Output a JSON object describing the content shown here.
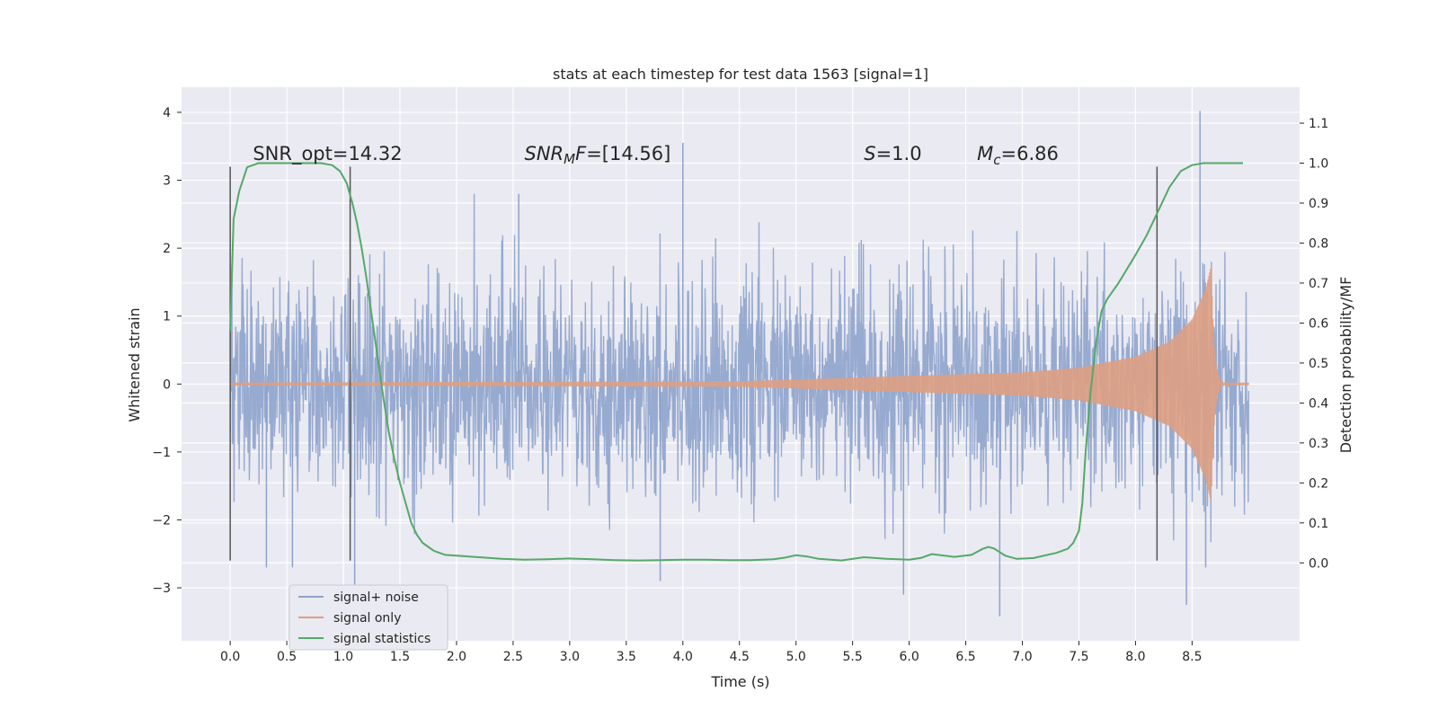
{
  "chart_data": {
    "type": "line",
    "title": "stats at each timestep for test data 1563 [signal=1]",
    "xlabel": "Time (s)",
    "ylabel_left": "Whitened strain",
    "ylabel_right": "Detection probability/MF",
    "xlim": [
      -0.43,
      9.45
    ],
    "ylim_left": [
      -3.78,
      4.37
    ],
    "ylim_right": [
      -0.195,
      1.19
    ],
    "x_ticks": [
      "0.0",
      "0.5",
      "1.0",
      "1.5",
      "2.0",
      "2.5",
      "3.0",
      "3.5",
      "4.0",
      "4.5",
      "5.0",
      "5.5",
      "6.0",
      "6.5",
      "7.0",
      "7.5",
      "8.0",
      "8.5"
    ],
    "x_tick_values": [
      0.0,
      0.5,
      1.0,
      1.5,
      2.0,
      2.5,
      3.0,
      3.5,
      4.0,
      4.5,
      5.0,
      5.5,
      6.0,
      6.5,
      7.0,
      7.5,
      8.0,
      8.5
    ],
    "y_left_ticks": [
      "4",
      "3",
      "2",
      "1",
      "0",
      "−1",
      "−2",
      "−3"
    ],
    "y_left_tick_values": [
      4,
      3,
      2,
      1,
      0,
      -1,
      -2,
      -3
    ],
    "y_right_ticks": [
      "1.1",
      "1.0",
      "0.9",
      "0.8",
      "0.7",
      "0.6",
      "0.5",
      "0.4",
      "0.3",
      "0.2",
      "0.1",
      "0.0"
    ],
    "y_right_tick_values": [
      1.1,
      1.0,
      0.9,
      0.8,
      0.7,
      0.6,
      0.5,
      0.4,
      0.3,
      0.2,
      0.1,
      0.0
    ],
    "grid": true,
    "legend_position": "lower-left",
    "series": [
      {
        "name": "signal+ noise",
        "axis": "left",
        "color": "#8ea3cc",
        "kind": "noise",
        "x_range": [
          0.0,
          9.0
        ],
        "typical_envelope": [
          -1.55,
          1.55
        ],
        "notable_peaks": [
          {
            "x": 4.0,
            "y": 3.55
          },
          {
            "x": 8.57,
            "y": 4.02
          },
          {
            "x": 6.8,
            "y": -3.42
          },
          {
            "x": 8.45,
            "y": -3.25
          },
          {
            "x": 3.8,
            "y": -2.9
          },
          {
            "x": 1.1,
            "y": -3.05
          },
          {
            "x": 0.55,
            "y": -2.7
          },
          {
            "x": 0.32,
            "y": -2.7
          },
          {
            "x": 5.95,
            "y": -3.1
          },
          {
            "x": 2.55,
            "y": 2.8
          },
          {
            "x": 8.62,
            "y": -2.7
          }
        ]
      },
      {
        "name": "signal only",
        "axis": "left",
        "color": "#dd9f82",
        "kind": "chirp",
        "x_range": [
          0.0,
          9.0
        ],
        "merger_time": 8.67,
        "amplitude_points": [
          {
            "x": 0.0,
            "y": 0.02
          },
          {
            "x": 4.5,
            "y": 0.04
          },
          {
            "x": 6.0,
            "y": 0.12
          },
          {
            "x": 7.0,
            "y": 0.17
          },
          {
            "x": 7.5,
            "y": 0.24
          },
          {
            "x": 8.0,
            "y": 0.4
          },
          {
            "x": 8.3,
            "y": 0.62
          },
          {
            "x": 8.5,
            "y": 0.95
          },
          {
            "x": 8.62,
            "y": 1.4
          },
          {
            "x": 8.67,
            "y": 1.75
          }
        ]
      },
      {
        "name": "signal statistics",
        "axis": "right",
        "color": "#55a868",
        "kind": "line",
        "x": [
          0.0,
          0.03,
          0.08,
          0.15,
          0.25,
          0.4,
          0.6,
          0.8,
          0.9,
          0.97,
          1.03,
          1.08,
          1.12,
          1.16,
          1.2,
          1.25,
          1.3,
          1.35,
          1.4,
          1.45,
          1.5,
          1.55,
          1.6,
          1.65,
          1.7,
          1.75,
          1.8,
          1.85,
          1.9,
          2.0,
          2.2,
          2.4,
          2.6,
          2.8,
          3.0,
          3.2,
          3.4,
          3.6,
          3.8,
          4.0,
          4.2,
          4.4,
          4.6,
          4.8,
          4.9,
          5.0,
          5.1,
          5.2,
          5.4,
          5.6,
          5.8,
          6.0,
          6.1,
          6.2,
          6.4,
          6.55,
          6.65,
          6.7,
          6.75,
          6.85,
          6.95,
          7.1,
          7.3,
          7.4,
          7.45,
          7.5,
          7.53,
          7.56,
          7.6,
          7.65,
          7.7,
          7.75,
          7.85,
          8.0,
          8.1,
          8.2,
          8.3,
          8.4,
          8.5,
          8.6,
          8.7,
          8.8,
          8.95
        ],
        "values": [
          0.58,
          0.86,
          0.93,
          0.99,
          1.0,
          1.0,
          1.0,
          1.0,
          0.995,
          0.98,
          0.95,
          0.9,
          0.85,
          0.79,
          0.72,
          0.62,
          0.52,
          0.42,
          0.33,
          0.26,
          0.2,
          0.15,
          0.1,
          0.07,
          0.05,
          0.04,
          0.03,
          0.025,
          0.02,
          0.018,
          0.014,
          0.01,
          0.008,
          0.009,
          0.011,
          0.009,
          0.007,
          0.006,
          0.007,
          0.008,
          0.008,
          0.007,
          0.007,
          0.009,
          0.013,
          0.019,
          0.016,
          0.01,
          0.006,
          0.014,
          0.01,
          0.008,
          0.012,
          0.022,
          0.015,
          0.02,
          0.035,
          0.04,
          0.036,
          0.018,
          0.01,
          0.012,
          0.025,
          0.035,
          0.05,
          0.08,
          0.15,
          0.28,
          0.42,
          0.55,
          0.63,
          0.66,
          0.7,
          0.77,
          0.82,
          0.88,
          0.94,
          0.98,
          0.995,
          1.0,
          1.0,
          1.0,
          1.0
        ]
      }
    ],
    "vertical_lines": [
      {
        "x": 0.0,
        "y_range": [
          -2.6,
          3.2
        ]
      },
      {
        "x": 1.06,
        "y_range": [
          -2.6,
          3.2
        ]
      },
      {
        "x": 8.19,
        "y_range": [
          -2.6,
          3.2
        ]
      }
    ],
    "annotations": [
      {
        "id": "snr-opt",
        "x": 0.2,
        "y": 3.3,
        "text": "SNR_opt=14.32"
      },
      {
        "id": "snr-mf",
        "x": 2.6,
        "y": 3.3,
        "parts": [
          "SNR",
          "M",
          "F",
          "=[14.56]"
        ]
      },
      {
        "id": "s",
        "x": 5.6,
        "y": 3.3,
        "parts": [
          "S",
          "=1.0"
        ]
      },
      {
        "id": "mc",
        "x": 6.6,
        "y": 3.3,
        "parts": [
          "M",
          "c",
          "=6.86"
        ]
      }
    ],
    "colors": {
      "axes_bg": "#eaeaf2",
      "grid": "#ffffff",
      "text": "#262626",
      "vline": "#555555",
      "legend_bg": "#eaeaf2",
      "legend_border": "#cccccc"
    }
  }
}
